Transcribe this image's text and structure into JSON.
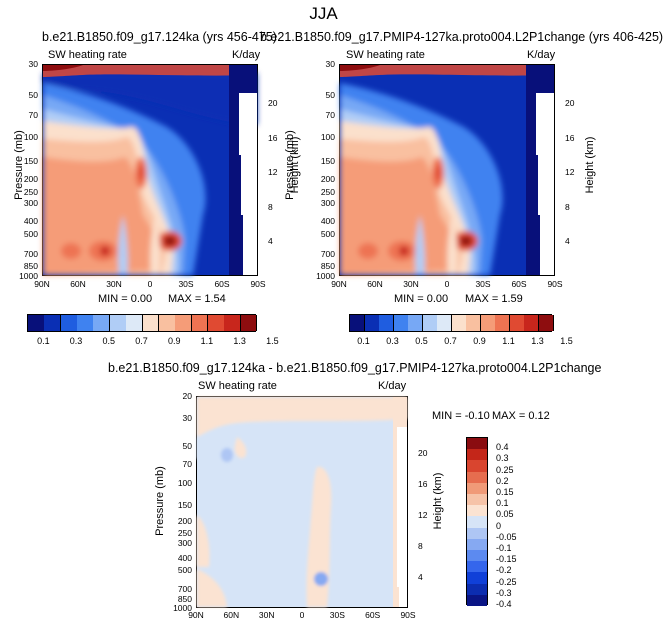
{
  "figure": {
    "title": "JJA",
    "panels": [
      {
        "title": "b.e21.B1850.f09_g17.124ka (yrs 456-475)",
        "left_label": "SW heating rate",
        "right_label": "K/day",
        "min_text": "MIN =   0.00",
        "max_text": "MAX =   1.54"
      },
      {
        "title": "b.e21.B1850.f09_g17.PMIP4-127ka.proto004.L2P1change (yrs 406-425)",
        "left_label": "SW heating rate",
        "right_label": "K/day",
        "min_text": "MIN =   0.00",
        "max_text": "MAX =   1.59"
      },
      {
        "title": "b.e21.B1850.f09_g17.124ka - b.e21.B1850.f09_g17.PMIP4-127ka.proto004.L2P1change",
        "left_label": "SW heating rate",
        "right_label": "K/day",
        "min_text": "MIN =  -0.10",
        "max_text": "MAX =   0.12"
      }
    ],
    "y_axis_title": "Pressure (mb)",
    "y2_axis_title": "Height (km)"
  },
  "chart_data": [
    {
      "type": "heatmap",
      "title": "b.e21.B1850.f09_g17.124ka (yrs 456-475)",
      "xlabel": "",
      "ylabel": "Pressure (mb)",
      "y2label": "Height (km)",
      "x_ticks": [
        "90N",
        "60N",
        "30N",
        "0",
        "30S",
        "60S",
        "90S"
      ],
      "x_range": [
        90,
        -90
      ],
      "y_ticks": [
        "30",
        "50",
        "70",
        "100",
        "150",
        "200",
        "250",
        "300",
        "400",
        "500",
        "700",
        "850",
        "1000"
      ],
      "y_range_mb": [
        30,
        1000
      ],
      "y2_ticks": [
        "20",
        "16",
        "12",
        "8",
        "4"
      ],
      "levels": [
        0.1,
        0.3,
        0.5,
        0.7,
        0.9,
        1.1,
        1.3,
        1.5
      ],
      "colorbar_labels": [
        "0.1",
        "0.3",
        "0.5",
        "0.7",
        "0.9",
        "1.1",
        "1.3",
        "1.5"
      ],
      "min": 0.0,
      "max": 1.54
    },
    {
      "type": "heatmap",
      "title": "b.e21.B1850.f09_g17.PMIP4-127ka.proto004.L2P1change (yrs 406-425)",
      "xlabel": "",
      "ylabel": "Pressure (mb)",
      "y2label": "Height (km)",
      "x_ticks": [
        "90N",
        "60N",
        "30N",
        "0",
        "30S",
        "60S",
        "90S"
      ],
      "x_range": [
        90,
        -90
      ],
      "y_ticks": [
        "30",
        "50",
        "70",
        "100",
        "150",
        "200",
        "250",
        "300",
        "400",
        "500",
        "700",
        "850",
        "1000"
      ],
      "y_range_mb": [
        30,
        1000
      ],
      "y2_ticks": [
        "20",
        "16",
        "12",
        "8",
        "4"
      ],
      "levels": [
        0.1,
        0.3,
        0.5,
        0.7,
        0.9,
        1.1,
        1.3,
        1.5
      ],
      "colorbar_labels": [
        "0.1",
        "0.3",
        "0.5",
        "0.7",
        "0.9",
        "1.1",
        "1.3",
        "1.5"
      ],
      "min": 0.0,
      "max": 1.59
    },
    {
      "type": "heatmap",
      "title": "b.e21.B1850.f09_g17.124ka - b.e21.B1850.f09_g17.PMIP4-127ka.proto004.L2P1change",
      "xlabel": "",
      "ylabel": "Pressure (mb)",
      "y2label": "Height (km)",
      "x_ticks": [
        "90N",
        "60N",
        "30N",
        "0",
        "30S",
        "60S",
        "90S"
      ],
      "x_range": [
        90,
        -90
      ],
      "y_ticks": [
        "20",
        "30",
        "50",
        "70",
        "100",
        "150",
        "200",
        "250",
        "300",
        "400",
        "500",
        "700",
        "850",
        "1000"
      ],
      "y_range_mb": [
        20,
        1000
      ],
      "y2_ticks": [
        "20",
        "16",
        "12",
        "8",
        "4"
      ],
      "levels": [
        -0.4,
        -0.3,
        -0.25,
        -0.2,
        -0.15,
        -0.1,
        -0.05,
        0,
        0.05,
        0.1,
        0.15,
        0.2,
        0.25,
        0.3,
        0.4
      ],
      "colorbar_labels": [
        "0.4",
        "0.3",
        "0.25",
        "0.2",
        "0.15",
        "0.1",
        "0.05",
        "0",
        "-0.05",
        "-0.1",
        "-0.15",
        "-0.2",
        "-0.25",
        "-0.3",
        "-0.4"
      ],
      "min": -0.1,
      "max": 0.12
    }
  ],
  "colors": {
    "seq": [
      "#08107a",
      "#0a2fb4",
      "#1f5de0",
      "#3f82f0",
      "#77a8f5",
      "#b0cdf6",
      "#dde9f7",
      "#fbe0cc",
      "#f9c0a0",
      "#f59c78",
      "#ee7352",
      "#e04a32",
      "#c8261c",
      "#8e0d0f"
    ],
    "diff": [
      "#0a1585",
      "#0c2db0",
      "#1040d8",
      "#3566ec",
      "#5c8af0",
      "#86a9f2",
      "#aec6f4",
      "#d6e4f7",
      "#fbe3d2",
      "#f6c3a8",
      "#f09a78",
      "#e66d4f",
      "#d9452f",
      "#c42619",
      "#8a0c10"
    ]
  }
}
